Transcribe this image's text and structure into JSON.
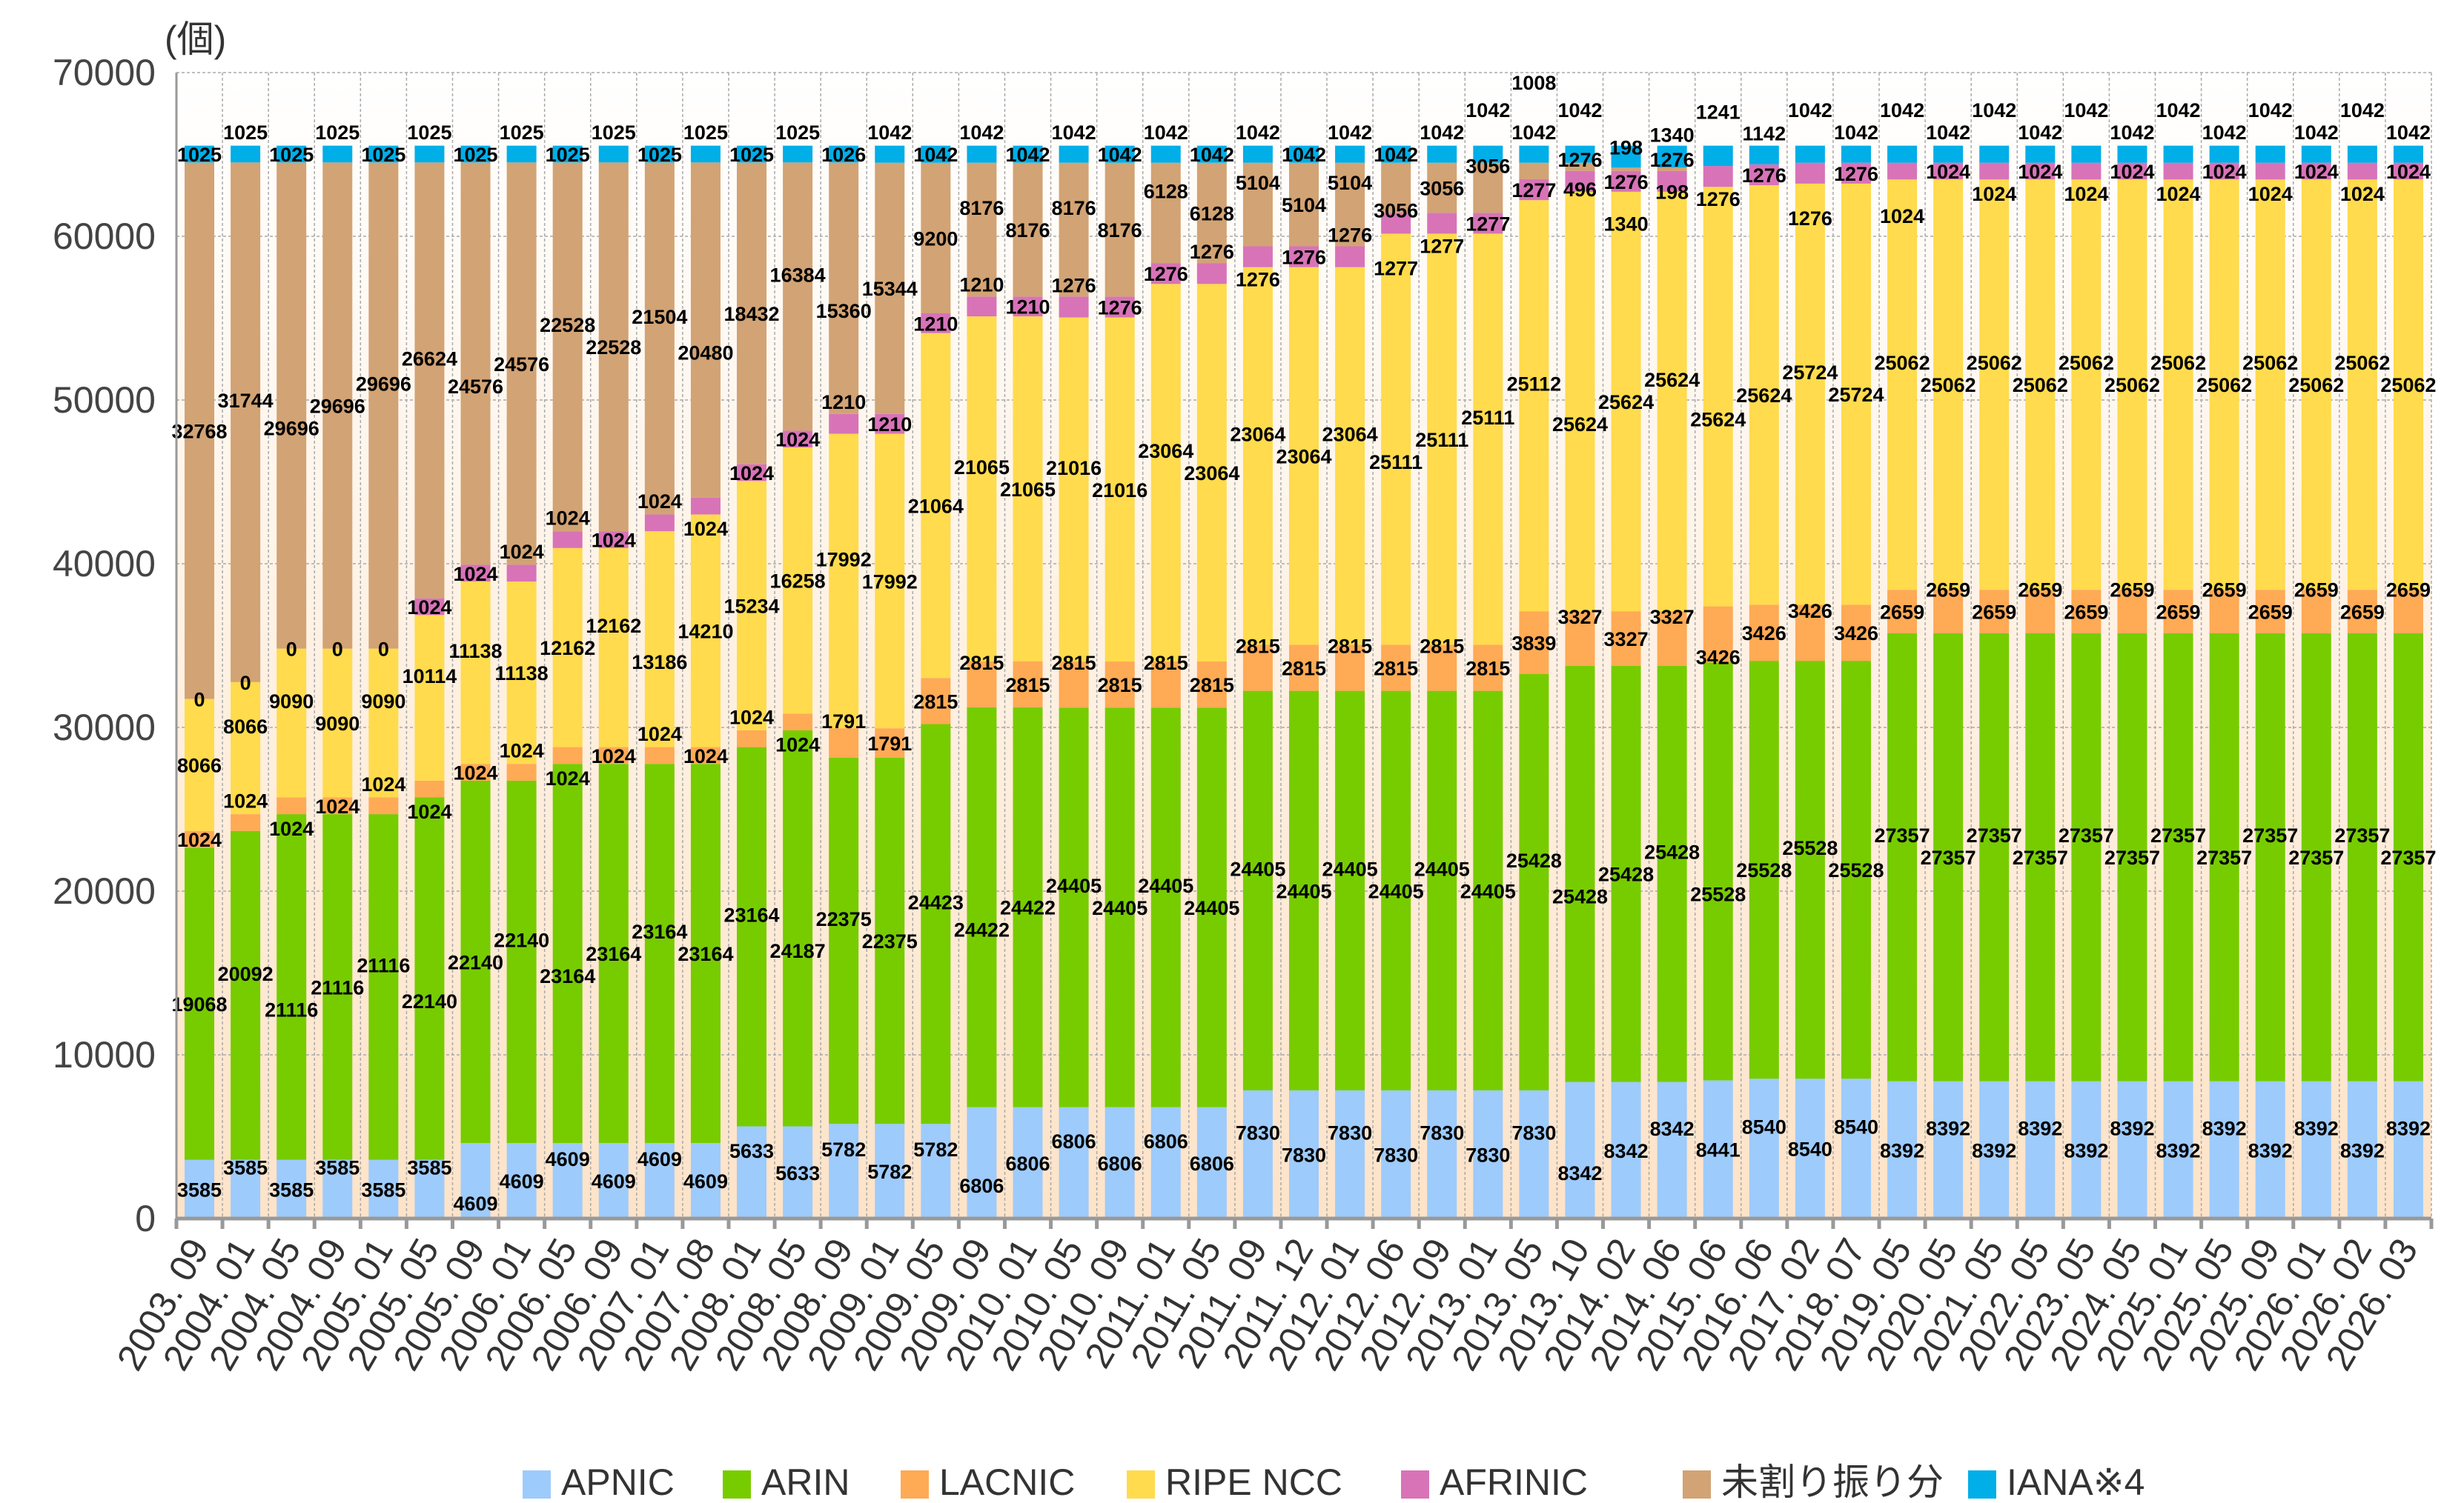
{
  "chart_data": {
    "type": "bar",
    "stacked": true,
    "title": "",
    "ylabel": "(個)",
    "xlabel": "",
    "ylim": [
      0,
      70000
    ],
    "yticks": [
      0,
      10000,
      20000,
      30000,
      40000,
      50000,
      60000,
      70000
    ],
    "grid": true,
    "legend_position": "bottom",
    "categories": [
      "2003. 09",
      "2004. 01",
      "2004. 05",
      "2004. 09",
      "2005. 01",
      "2005. 05",
      "2005. 09",
      "2006. 01",
      "2006. 05",
      "2006. 09",
      "2007. 01",
      "2007. 08",
      "2008. 01",
      "2008. 05",
      "2008. 09",
      "2009. 01",
      "2009. 05",
      "2009. 09",
      "2010. 01",
      "2010. 05",
      "2010. 09",
      "2011. 01",
      "2011. 05",
      "2011. 09",
      "2011. 12",
      "2012. 01",
      "2012. 06",
      "2012. 09",
      "2013. 01",
      "2013. 05",
      "2013. 10",
      "2014. 02",
      "2014. 06",
      "2015. 06",
      "2016. 06",
      "2017. 02",
      "2018. 07",
      "2019. 05",
      "2020. 05",
      "2021. 05",
      "2022. 05",
      "2023. 05",
      "2024. 05",
      "2025. 01",
      "2025. 05",
      "2025. 09",
      "2026. 01",
      "2026. 02",
      "2026. 03"
    ],
    "series": [
      {
        "name": "APNIC",
        "color": "#9dcbfc",
        "values": [
          3585,
          3585,
          3585,
          3585,
          3585,
          3585,
          4609,
          4609,
          4609,
          4609,
          4609,
          4609,
          5633,
          5633,
          5782,
          5782,
          5782,
          6806,
          6806,
          6806,
          6806,
          6806,
          6806,
          7830,
          7830,
          7830,
          7830,
          7830,
          7830,
          7830,
          8342,
          8342,
          8342,
          8441,
          8540,
          8540,
          8540,
          8392,
          8392,
          8392,
          8392,
          8392,
          8392,
          8392,
          8392,
          8392,
          8392,
          8392,
          8392
        ]
      },
      {
        "name": "ARIN",
        "color": "#77cc00",
        "values": [
          19068,
          20092,
          21116,
          21116,
          21116,
          22140,
          22140,
          22140,
          23164,
          23164,
          23164,
          23164,
          23164,
          24187,
          22375,
          22375,
          24423,
          24422,
          24422,
          24405,
          24405,
          24405,
          24405,
          24405,
          24405,
          24405,
          24405,
          24405,
          24405,
          25428,
          25428,
          25428,
          25428,
          25528,
          25528,
          25528,
          25528,
          27357,
          27357,
          27357,
          27357,
          27357,
          27357,
          27357,
          27357,
          27357,
          27357,
          27357,
          27357
        ]
      },
      {
        "name": "LACNIC",
        "color": "#ffaa55",
        "values": [
          1024,
          1024,
          1024,
          1024,
          1024,
          1024,
          1024,
          1024,
          1024,
          1024,
          1024,
          1024,
          1024,
          1024,
          1791,
          1791,
          2815,
          2815,
          2815,
          2815,
          2815,
          2815,
          2815,
          2815,
          2815,
          2815,
          2815,
          2815,
          2815,
          3839,
          3327,
          3327,
          3327,
          3426,
          3426,
          3426,
          3426,
          2659,
          2659,
          2659,
          2659,
          2659,
          2659,
          2659,
          2659,
          2659,
          2659,
          2659,
          2659
        ]
      },
      {
        "name": "RIPE NCC",
        "color": "#ffdb4d",
        "values": [
          8066,
          8066,
          9090,
          9090,
          9090,
          10114,
          11138,
          11138,
          12162,
          12162,
          13186,
          14210,
          15234,
          16258,
          17992,
          17992,
          21064,
          21065,
          21065,
          21016,
          21016,
          23064,
          23064,
          23064,
          23064,
          23064,
          25111,
          25111,
          25111,
          25112,
          25624,
          25624,
          25624,
          25624,
          25624,
          25724,
          25724,
          25062,
          25062,
          25062,
          25062,
          25062,
          25062,
          25062,
          25062,
          25062,
          25062,
          25062,
          25062
        ]
      },
      {
        "name": "AFRINIC",
        "color": "#d873b8",
        "values": [
          0,
          0,
          0,
          0,
          0,
          1024,
          1024,
          1024,
          1024,
          1024,
          1024,
          1024,
          1024,
          1024,
          1210,
          1210,
          1210,
          1210,
          1210,
          1276,
          1276,
          1276,
          1276,
          1276,
          1276,
          1276,
          1277,
          1277,
          1277,
          1277,
          1276,
          1276,
          1276,
          1276,
          1276,
          1276,
          1276,
          1024,
          1024,
          1024,
          1024,
          1024,
          1024,
          1024,
          1024,
          1024,
          1024,
          1024,
          1024
        ]
      },
      {
        "name": "未割り振り分",
        "color": "#d2a374",
        "values": [
          32768,
          31744,
          29696,
          29696,
          29696,
          26624,
          24576,
          24576,
          22528,
          22528,
          21504,
          20480,
          18432,
          16384,
          15360,
          15344,
          9200,
          8176,
          8176,
          8176,
          8176,
          6128,
          6128,
          5104,
          5104,
          5104,
          3056,
          3056,
          3056,
          1008,
          496,
          198,
          198,
          0,
          0,
          0,
          0,
          0,
          0,
          0,
          0,
          0,
          0,
          0,
          0,
          0,
          0,
          0,
          0
        ]
      },
      {
        "name": "IANA※4",
        "color": "#00aee8",
        "values": [
          1025,
          1025,
          1025,
          1025,
          1025,
          1025,
          1025,
          1025,
          1025,
          1025,
          1025,
          1025,
          1025,
          1025,
          1026,
          1042,
          1042,
          1042,
          1042,
          1042,
          1042,
          1042,
          1042,
          1042,
          1042,
          1042,
          1042,
          1042,
          1042,
          1042,
          1042,
          1340,
          1340,
          1241,
          1142,
          1042,
          1042,
          1042,
          1042,
          1042,
          1042,
          1042,
          1042,
          1042,
          1042,
          1042,
          1042,
          1042,
          1042
        ]
      }
    ]
  }
}
